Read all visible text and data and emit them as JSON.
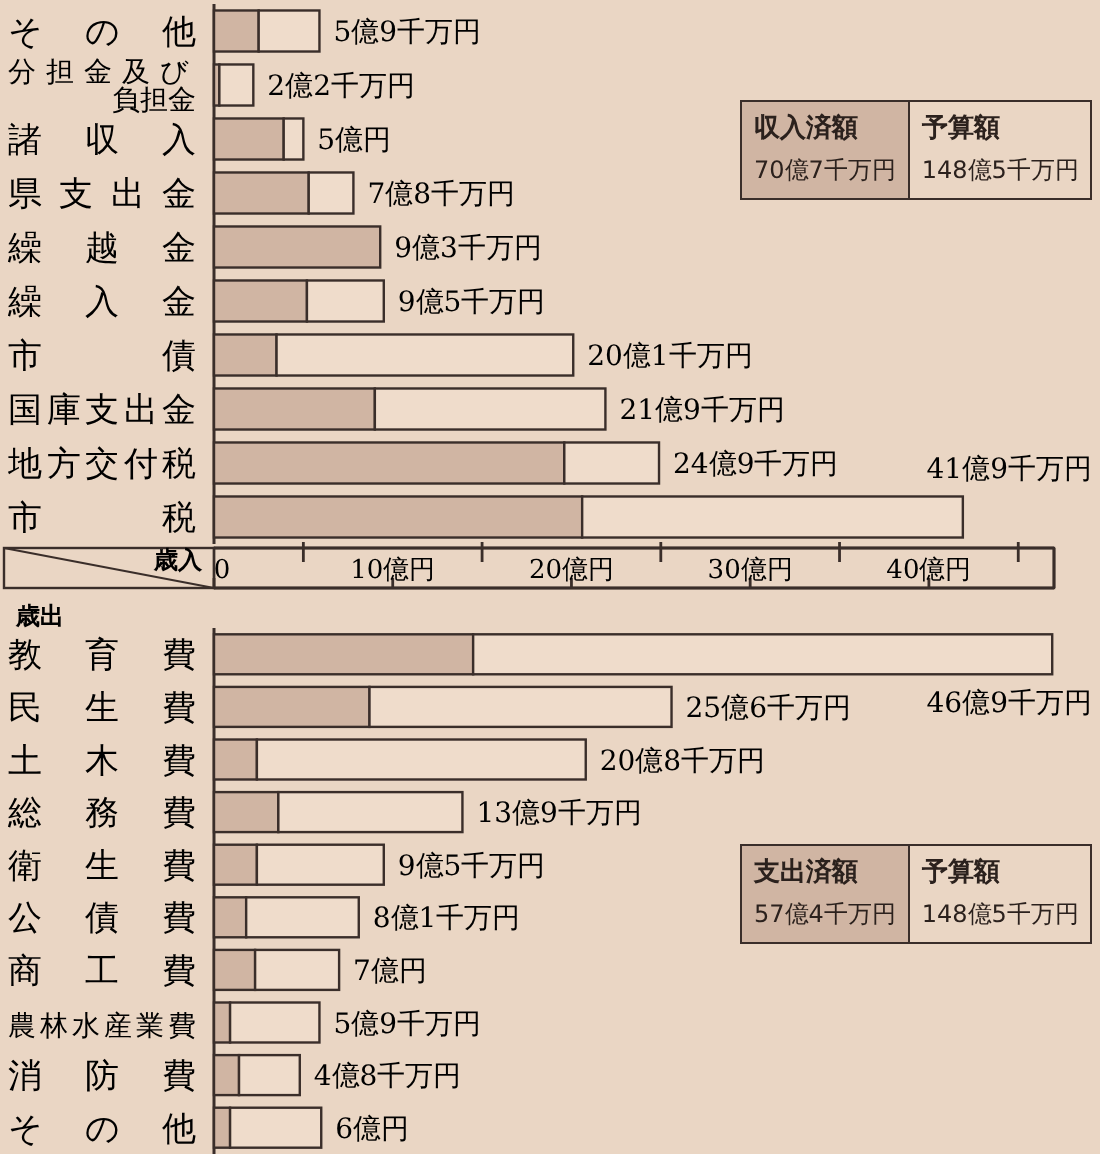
{
  "chart_data": [
    {
      "type": "bar",
      "orientation": "horizontal",
      "stacked": true,
      "title": "歳入",
      "categories": [
        "その他",
        "分担金及び負担金",
        "諸収入",
        "県支出金",
        "繰越金",
        "繰入金",
        "市債",
        "国庫支出金",
        "地方交付税",
        "市税"
      ],
      "series": [
        {
          "color": "#d0b5a3",
          "values": [
            2.5,
            0.3,
            3.9,
            5.3,
            9.3,
            5.2,
            3.5,
            9.0,
            19.6,
            20.6
          ]
        },
        {
          "color": "#efdccb",
          "values": [
            3.4,
            1.9,
            1.1,
            2.5,
            0,
            4.3,
            16.6,
            12.9,
            5.3,
            21.3
          ]
        }
      ],
      "totals": [
        "5億9千万円",
        "2億2千万円",
        "5億円",
        "7億8千万円",
        "9億3千万円",
        "9億5千万円",
        "20億1千万円",
        "21億9千万円",
        "24億9千万円",
        "41億9千万円"
      ],
      "xlim": [
        0,
        47
      ],
      "xticks": [
        0,
        {
          "value": 5,
          "label": null
        },
        {
          "value": 10,
          "label": "10億円"
        },
        {
          "value": 15,
          "label": null
        },
        {
          "value": 20,
          "label": "20億円"
        },
        {
          "value": 25,
          "label": null
        },
        {
          "value": 30,
          "label": "30億円"
        },
        {
          "value": 35,
          "label": null
        },
        {
          "value": 40,
          "label": "40億円"
        },
        {
          "value": 45,
          "label": null
        }
      ],
      "annotations": [
        "収入済額",
        "70億7千万円",
        "予算額",
        "148億5千万円"
      ]
    },
    {
      "type": "bar",
      "orientation": "horizontal",
      "stacked": true,
      "title": "歳出",
      "tick_labels": "y",
      "categories": [
        "教育費",
        "民生費",
        "土木費",
        "総務費",
        "衛生費",
        "公債費",
        "商工費",
        "農林水産業費",
        "消防費",
        "その他"
      ],
      "series": [
        {
          "color": "#d0b5a3",
          "values": [
            14.5,
            8.7,
            2.4,
            3.6,
            2.4,
            1.8,
            2.3,
            0.9,
            1.4,
            0.9
          ]
        },
        {
          "color": "#efdccb",
          "values": [
            32.4,
            16.9,
            18.4,
            10.3,
            7.1,
            6.3,
            4.7,
            5.0,
            3.4,
            5.1
          ]
        }
      ],
      "totals": [
        "46億9千万円",
        "25億6千万円",
        "20億8千万円",
        "13億9千万円",
        "9億5千万円",
        "8億1千万円",
        "7億円",
        "5億9千万円",
        "4億8千万円",
        "6億円"
      ],
      "xlim": [
        0,
        47
      ],
      "annotations": [
        "支出済額",
        "57億4千万円",
        "予算額",
        "148億5千万円"
      ]
    }
  ]
}
